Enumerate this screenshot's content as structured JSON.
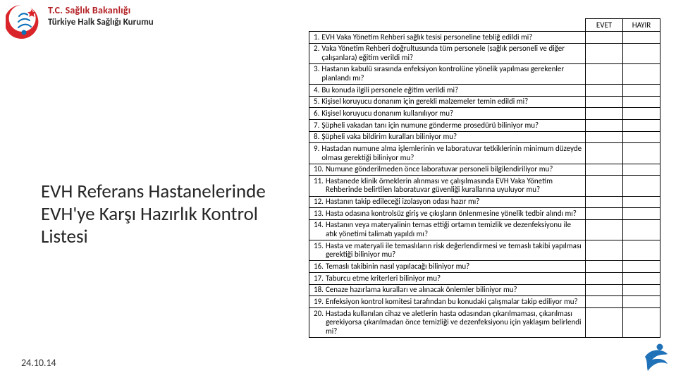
{
  "colors": {
    "logo_red": "#d9252a",
    "logo_blue": "#0a6fb7",
    "header_red": "#b32024",
    "header_dark": "#292929",
    "corner_blue": "#1f71b8",
    "text": "#262626"
  },
  "header": {
    "line1": "T.C. Sağlık Bakanlığı",
    "line2": "Türkiye Halk Sağlığı Kurumu"
  },
  "side_title": "EVH Referans Hastanelerinde EVH'ye Karşı Hazırlık Kontrol Listesi",
  "date": "24.10.14",
  "table": {
    "header_evet": "EVET",
    "header_hayir": "HAYIR",
    "rows": [
      {
        "n": "1.",
        "q": "EVH Vaka Yönetim Rehberi sağlık tesisi personeline tebliğ edildi mi?"
      },
      {
        "n": "2.",
        "q": "Vaka Yönetim Rehberi doğrultusunda tüm personele (sağlık personeli ve diğer çalışanlara) eğitim verildi mi?"
      },
      {
        "n": "3.",
        "q": "Hastanın kabulü sırasında enfeksiyon kontrolüne yönelik yapılması gerekenler planlandı mı?"
      },
      {
        "n": "4.",
        "q": "Bu konuda ilgili personele eğitim verildi mi?"
      },
      {
        "n": "5.",
        "q": "Kişisel koruyucu donanım için gerekli malzemeler temin edildi mi?"
      },
      {
        "n": "6.",
        "q": "Kişisel koruyucu donanım kullanılıyor mu?"
      },
      {
        "n": "7.",
        "q": "Şüpheli vakadan tanı için numune gönderme prosedürü biliniyor mu?"
      },
      {
        "n": "8.",
        "q": "Şüpheli vaka bildirim kuralları biliniyor mu?"
      },
      {
        "n": "9.",
        "q": "Hastadan numune alma işlemlerinin ve laboratuvar tetkiklerinin minimum düzeyde olması gerektiği biliniyor mu?"
      },
      {
        "n": "10.",
        "q": "Numune gönderilmeden önce laboratuvar personeli bilgilendiriliyor mu?"
      },
      {
        "n": "11.",
        "q": "Hastanede klinik örneklerin alınması ve çalışılmasında EVH Vaka Yönetim Rehberinde belirtilen laboratuvar güvenliği kurallarına uyuluyor mu?"
      },
      {
        "n": "12.",
        "q": "Hastanın takip edileceği izolasyon odası hazır mı?"
      },
      {
        "n": "13.",
        "q": "Hasta odasına kontrolsüz giriş ve çıkışların önlenmesine yönelik tedbir alındı mı?"
      },
      {
        "n": "14.",
        "q": "Hastanın veya materyalinin temas ettiği ortamın temizlik ve dezenfeksiyonu ile atık yönetimi talimatı yapıldı mı?"
      },
      {
        "n": "15.",
        "q": "Hasta ve materyali ile temaslıların risk değerlendirmesi ve temaslı takibi yapılması gerektiği biliniyor mu?"
      },
      {
        "n": "16.",
        "q": "Temaslı takibinin nasıl yapılacağı biliniyor mu?"
      },
      {
        "n": "17.",
        "q": "Taburcu etme kriterleri biliniyor mu?"
      },
      {
        "n": "18.",
        "q": "Cenaze hazırlama kuralları ve alınacak önlemler biliniyor mu?"
      },
      {
        "n": "19.",
        "q": "Enfeksiyon kontrol komitesi tarafından bu konudaki çalışmalar takip ediliyor mu?"
      },
      {
        "n": "20.",
        "q": "Hastada kullanılan cihaz ve aletlerin hasta odasından çıkarılmaması, çıkarılması gerekiyorsa çıkarılmadan önce temizliği ve dezenfeksiyonu için yaklaşım belirlendi mi?"
      }
    ]
  }
}
